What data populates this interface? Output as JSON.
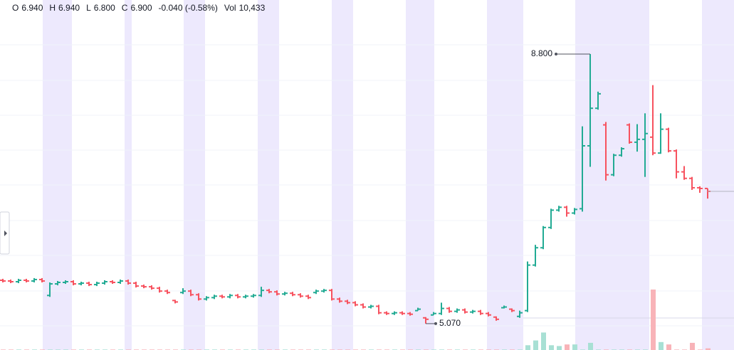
{
  "chart_data": {
    "type": "ohlc",
    "header": [
      {
        "label": "O",
        "value": "6.940"
      },
      {
        "label": "H",
        "value": "6.940"
      },
      {
        "label": "L",
        "value": "6.800"
      },
      {
        "label": "C",
        "value": "6.900"
      }
    ],
    "change": "-0.040 (-0.58%)",
    "volume_label": "Vol",
    "volume": "10,433",
    "high_label": "8.800",
    "low_label": "5.070",
    "up_color": "#22ab94",
    "down_color": "#f7525f",
    "volume_up_color": "#a8e0d4",
    "volume_down_color": "#f8b3b8",
    "ylim": [
      4.705,
      9.548
    ],
    "vlim": [
      0,
      2200000
    ],
    "ohlc": [
      [
        5.67,
        5.69,
        5.64,
        5.66
      ],
      [
        5.66,
        5.68,
        5.63,
        5.65
      ],
      [
        5.65,
        5.69,
        5.63,
        5.67
      ],
      [
        5.67,
        5.69,
        5.64,
        5.66
      ],
      [
        5.66,
        5.7,
        5.64,
        5.68
      ],
      [
        5.68,
        5.7,
        5.64,
        5.66
      ],
      [
        5.46,
        5.64,
        5.44,
        5.62
      ],
      [
        5.62,
        5.66,
        5.6,
        5.64
      ],
      [
        5.64,
        5.67,
        5.62,
        5.65
      ],
      [
        5.65,
        5.67,
        5.6,
        5.62
      ],
      [
        5.62,
        5.65,
        5.6,
        5.63
      ],
      [
        5.63,
        5.65,
        5.59,
        5.61
      ],
      [
        5.61,
        5.65,
        5.59,
        5.63
      ],
      [
        5.63,
        5.67,
        5.61,
        5.65
      ],
      [
        5.65,
        5.67,
        5.62,
        5.64
      ],
      [
        5.64,
        5.68,
        5.62,
        5.66
      ],
      [
        5.66,
        5.68,
        5.61,
        5.63
      ],
      [
        5.63,
        5.65,
        5.57,
        5.59
      ],
      [
        5.59,
        5.61,
        5.56,
        5.58
      ],
      [
        5.58,
        5.6,
        5.54,
        5.56
      ],
      [
        5.56,
        5.58,
        5.5,
        5.52
      ],
      [
        5.52,
        5.54,
        5.48,
        5.5
      ],
      [
        5.39,
        5.4,
        5.35,
        5.37
      ],
      [
        5.5,
        5.56,
        5.48,
        5.52
      ],
      [
        5.52,
        5.54,
        5.45,
        5.47
      ],
      [
        5.47,
        5.49,
        5.39,
        5.41
      ],
      [
        5.41,
        5.45,
        5.39,
        5.43
      ],
      [
        5.43,
        5.47,
        5.41,
        5.45
      ],
      [
        5.45,
        5.47,
        5.42,
        5.44
      ],
      [
        5.44,
        5.48,
        5.42,
        5.46
      ],
      [
        5.46,
        5.48,
        5.42,
        5.44
      ],
      [
        5.44,
        5.47,
        5.42,
        5.45
      ],
      [
        5.45,
        5.48,
        5.43,
        5.46
      ],
      [
        5.46,
        5.58,
        5.44,
        5.53
      ],
      [
        5.53,
        5.55,
        5.49,
        5.51
      ],
      [
        5.51,
        5.53,
        5.46,
        5.48
      ],
      [
        5.48,
        5.51,
        5.46,
        5.49
      ],
      [
        5.49,
        5.51,
        5.45,
        5.47
      ],
      [
        5.47,
        5.49,
        5.43,
        5.45
      ],
      [
        5.45,
        5.47,
        5.41,
        5.43
      ],
      [
        5.5,
        5.54,
        5.48,
        5.52
      ],
      [
        5.52,
        5.55,
        5.5,
        5.53
      ],
      [
        5.53,
        5.55,
        5.39,
        5.41
      ],
      [
        5.41,
        5.43,
        5.36,
        5.38
      ],
      [
        5.38,
        5.4,
        5.34,
        5.36
      ],
      [
        5.36,
        5.38,
        5.31,
        5.33
      ],
      [
        5.33,
        5.35,
        5.28,
        5.3
      ],
      [
        5.3,
        5.33,
        5.28,
        5.31
      ],
      [
        5.31,
        5.33,
        5.2,
        5.22
      ],
      [
        5.22,
        5.24,
        5.19,
        5.21
      ],
      [
        5.21,
        5.24,
        5.19,
        5.22
      ],
      [
        5.22,
        5.24,
        5.19,
        5.21
      ],
      [
        5.21,
        5.23,
        5.18,
        5.2
      ],
      [
        5.25,
        5.29,
        5.25,
        5.27
      ],
      [
        5.15,
        5.16,
        5.07,
        5.13
      ],
      [
        5.19,
        5.23,
        5.19,
        5.21
      ],
      [
        5.21,
        5.36,
        5.19,
        5.28
      ],
      [
        5.28,
        5.3,
        5.22,
        5.24
      ],
      [
        5.24,
        5.28,
        5.22,
        5.26
      ],
      [
        5.26,
        5.28,
        5.21,
        5.23
      ],
      [
        5.23,
        5.26,
        5.21,
        5.24
      ],
      [
        5.24,
        5.26,
        5.19,
        5.21
      ],
      [
        5.21,
        5.23,
        5.17,
        5.19
      ],
      [
        5.16,
        5.17,
        5.11,
        5.13
      ],
      [
        5.29,
        5.32,
        5.28,
        5.3
      ],
      [
        5.27,
        5.28,
        5.23,
        5.25
      ],
      [
        5.17,
        5.25,
        5.15,
        5.22
      ],
      [
        5.25,
        5.93,
        5.23,
        5.88
      ],
      [
        5.88,
        6.16,
        5.86,
        6.12
      ],
      [
        6.12,
        6.42,
        6.1,
        6.4
      ],
      [
        6.4,
        6.66,
        6.38,
        6.64
      ],
      [
        6.64,
        6.7,
        6.62,
        6.68
      ],
      [
        6.68,
        6.7,
        6.55,
        6.6
      ],
      [
        6.6,
        6.67,
        6.58,
        6.65
      ],
      [
        6.66,
        7.8,
        6.62,
        7.53
      ],
      [
        7.53,
        8.8,
        7.24,
        8.05
      ],
      [
        8.05,
        8.28,
        8.03,
        8.25
      ],
      [
        7.82,
        7.86,
        7.05,
        7.13
      ],
      [
        7.13,
        7.42,
        7.11,
        7.4
      ],
      [
        7.4,
        7.51,
        7.38,
        7.49
      ],
      [
        7.82,
        7.84,
        7.56,
        7.58
      ],
      [
        7.58,
        7.83,
        7.45,
        7.62
      ],
      [
        7.62,
        7.98,
        7.1,
        7.7
      ],
      [
        7.65,
        8.37,
        7.4,
        7.43
      ],
      [
        7.43,
        7.98,
        7.42,
        7.76
      ],
      [
        7.76,
        7.78,
        7.44,
        7.46
      ],
      [
        7.46,
        7.48,
        7.08,
        7.17
      ],
      [
        7.17,
        7.25,
        7.06,
        7.08
      ],
      [
        7.08,
        7.1,
        6.92,
        6.95
      ],
      [
        6.95,
        6.97,
        6.88,
        6.94
      ],
      [
        6.94,
        6.94,
        6.8,
        6.9
      ]
    ],
    "volumes": [
      3000,
      3000,
      3000,
      3000,
      3000,
      3000,
      3000,
      3000,
      3000,
      3000,
      3000,
      3000,
      3000,
      3000,
      3000,
      3000,
      3000,
      3000,
      3000,
      3000,
      3000,
      3000,
      3000,
      3000,
      3000,
      3000,
      3000,
      3000,
      3000,
      3000,
      3000,
      3000,
      3000,
      3000,
      3000,
      3000,
      3000,
      3000,
      3000,
      3000,
      3000,
      3000,
      3000,
      3000,
      3000,
      3000,
      3000,
      3000,
      3000,
      3000,
      3000,
      3000,
      3000,
      3000,
      3000,
      3000,
      3000,
      3000,
      3000,
      3000,
      3000,
      3000,
      3000,
      3000,
      3000,
      3000,
      3000,
      30000,
      60000,
      110000,
      30000,
      25000,
      35000,
      35000,
      3000,
      45000,
      3000,
      3000,
      3000,
      3000,
      3000,
      3000,
      3000,
      380000,
      50000,
      35000,
      3000,
      3000,
      45000,
      3000,
      10433
    ]
  }
}
